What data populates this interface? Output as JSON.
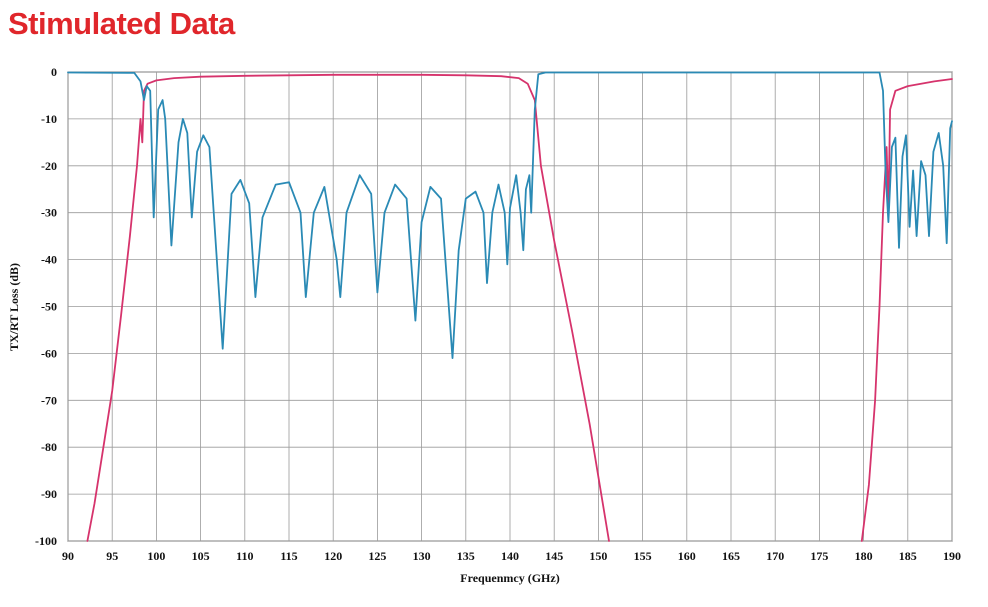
{
  "title": "Stimulated Data",
  "chart_data": {
    "type": "line",
    "title": "Stimulated Data",
    "xlabel": "Frequenmcy (GHz)",
    "ylabel": "TX/RT Loss (dB)",
    "xlim": [
      90,
      190
    ],
    "ylim": [
      -100,
      0
    ],
    "xticks": [
      "90",
      "95",
      "100",
      "105",
      "110",
      "115",
      "120",
      "125",
      "130",
      "135",
      "140",
      "145",
      "150",
      "155",
      "160",
      "165",
      "170",
      "175",
      "180",
      "185",
      "190"
    ],
    "yticks": [
      "0",
      "-10",
      "-20",
      "-30",
      "-40",
      "-50",
      "-60",
      "-70",
      "-80",
      "-90",
      "-100"
    ],
    "grid": true,
    "colors": {
      "transmission": "#d6336c",
      "return": "#2a8ab5",
      "grid": "#9a9a9a"
    },
    "series": [
      {
        "key": "transmission",
        "color": "#d6336c",
        "segments": [
          [
            [
              92.2,
              -100
            ],
            [
              93,
              -92
            ],
            [
              94,
              -80
            ],
            [
              95,
              -68
            ],
            [
              96,
              -52
            ],
            [
              97,
              -35
            ],
            [
              97.8,
              -20
            ],
            [
              98.2,
              -10
            ],
            [
              98.4,
              -15
            ],
            [
              98.6,
              -4
            ],
            [
              99,
              -2.5
            ],
            [
              100,
              -1.8
            ],
            [
              102,
              -1.3
            ],
            [
              105,
              -1
            ],
            [
              110,
              -0.8
            ],
            [
              120,
              -0.6
            ],
            [
              130,
              -0.6
            ],
            [
              135,
              -0.7
            ],
            [
              139,
              -0.9
            ],
            [
              141,
              -1.3
            ],
            [
              142,
              -2.5
            ],
            [
              142.8,
              -6
            ],
            [
              143.5,
              -20
            ],
            [
              145,
              -36
            ],
            [
              147,
              -55
            ],
            [
              149,
              -75
            ],
            [
              150.5,
              -92
            ],
            [
              151.2,
              -100
            ]
          ],
          [
            [
              179.8,
              -100
            ],
            [
              180.6,
              -88
            ],
            [
              181.3,
              -70
            ],
            [
              181.8,
              -50
            ],
            [
              182.2,
              -30
            ],
            [
              182.6,
              -16
            ],
            [
              182.8,
              -30
            ],
            [
              183,
              -8
            ],
            [
              183.6,
              -4
            ],
            [
              185,
              -3
            ],
            [
              188,
              -2
            ],
            [
              190,
              -1.5
            ]
          ]
        ]
      },
      {
        "key": "return",
        "color": "#2a8ab5",
        "segments": [
          [
            [
              90,
              -0.1
            ],
            [
              97.5,
              -0.2
            ],
            [
              98.2,
              -2
            ],
            [
              98.6,
              -6
            ],
            [
              98.9,
              -3
            ],
            [
              99.3,
              -4
            ],
            [
              99.7,
              -31
            ],
            [
              100.2,
              -8
            ],
            [
              100.7,
              -6
            ],
            [
              101,
              -10
            ],
            [
              101.7,
              -37
            ],
            [
              102.5,
              -15
            ],
            [
              103,
              -10
            ],
            [
              103.5,
              -13
            ],
            [
              104,
              -31
            ],
            [
              104.6,
              -17
            ],
            [
              105.3,
              -13.5
            ],
            [
              106,
              -16
            ],
            [
              107.5,
              -59
            ],
            [
              108.5,
              -26
            ],
            [
              109.5,
              -23
            ],
            [
              110.5,
              -28
            ],
            [
              111.2,
              -48
            ],
            [
              112,
              -31
            ],
            [
              113.5,
              -24
            ],
            [
              115,
              -23.5
            ],
            [
              116.3,
              -30
            ],
            [
              116.9,
              -48
            ],
            [
              117.8,
              -30
            ],
            [
              119,
              -24.5
            ],
            [
              120.4,
              -40
            ],
            [
              120.8,
              -48
            ],
            [
              121.5,
              -30
            ],
            [
              123,
              -22
            ],
            [
              124.3,
              -26
            ],
            [
              125,
              -47
            ],
            [
              125.8,
              -30
            ],
            [
              127,
              -24
            ],
            [
              128.3,
              -27
            ],
            [
              129.3,
              -53
            ],
            [
              130,
              -32
            ],
            [
              131,
              -24.5
            ],
            [
              132.2,
              -27
            ],
            [
              133.5,
              -61
            ],
            [
              134.2,
              -38
            ],
            [
              135,
              -27
            ],
            [
              136.1,
              -25.5
            ],
            [
              137,
              -30
            ],
            [
              137.4,
              -45
            ],
            [
              138,
              -30
            ],
            [
              138.7,
              -24
            ],
            [
              139.4,
              -30
            ],
            [
              139.7,
              -41
            ],
            [
              140,
              -29
            ],
            [
              140.7,
              -22
            ],
            [
              141.2,
              -30
            ],
            [
              141.5,
              -38
            ],
            [
              141.8,
              -25
            ],
            [
              142.2,
              -22
            ],
            [
              142.4,
              -30
            ],
            [
              142.8,
              -8
            ],
            [
              143.2,
              -0.5
            ],
            [
              144,
              -0.1
            ],
            [
              160,
              -0.1
            ],
            [
              181.8,
              -0.1
            ],
            [
              182.2,
              -4
            ],
            [
              182.5,
              -22
            ],
            [
              182.8,
              -32
            ],
            [
              183.2,
              -16
            ],
            [
              183.6,
              -14
            ],
            [
              184,
              -37.5
            ],
            [
              184.4,
              -18
            ],
            [
              184.8,
              -13.5
            ],
            [
              185.2,
              -33
            ],
            [
              185.6,
              -21
            ],
            [
              186,
              -35
            ],
            [
              186.5,
              -19
            ],
            [
              187,
              -22
            ],
            [
              187.4,
              -35
            ],
            [
              187.9,
              -17
            ],
            [
              188.5,
              -13
            ],
            [
              189,
              -20
            ],
            [
              189.4,
              -36.5
            ],
            [
              189.8,
              -12
            ],
            [
              190,
              -10.5
            ]
          ]
        ]
      }
    ]
  }
}
